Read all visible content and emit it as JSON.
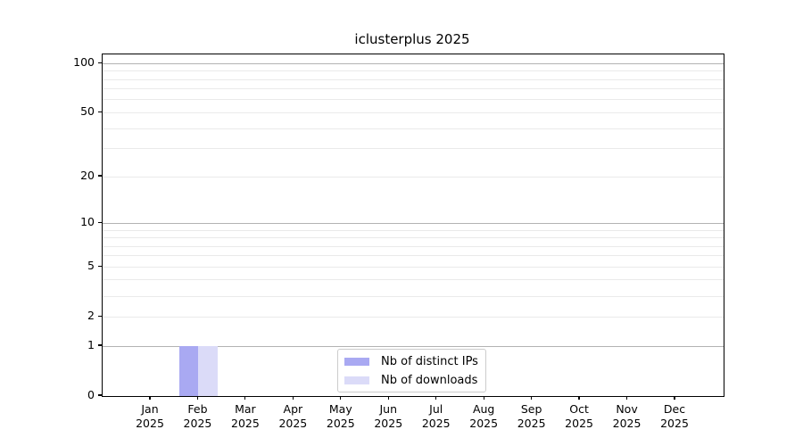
{
  "chart_data": {
    "type": "bar",
    "title": "iclusterplus 2025",
    "x_months": [
      "Jan",
      "Feb",
      "Mar",
      "Apr",
      "May",
      "Jun",
      "Jul",
      "Aug",
      "Sep",
      "Oct",
      "Nov",
      "Dec"
    ],
    "x_year": "2025",
    "series": [
      {
        "name": "Nb of distinct IPs",
        "color": "#a9a9f2",
        "values": [
          0,
          1,
          0,
          0,
          0,
          0,
          0,
          0,
          0,
          0,
          0,
          0
        ]
      },
      {
        "name": "Nb of downloads",
        "color": "#dbdbf8",
        "values": [
          0,
          1,
          0,
          0,
          0,
          0,
          0,
          0,
          0,
          0,
          0,
          0
        ]
      }
    ],
    "yscale": "log1p",
    "ylim": [
      0,
      113.6
    ],
    "y_tick_values": [
      0,
      1,
      2,
      5,
      10,
      20,
      50,
      100
    ],
    "y_major_gridlines": [
      1,
      10,
      100
    ],
    "y_minor_gridlines": [
      2,
      3,
      4,
      5,
      6,
      7,
      8,
      9,
      20,
      30,
      40,
      50,
      60,
      70,
      80,
      90
    ],
    "grid": true,
    "legend_position": "bottom-center"
  },
  "colors": {
    "background": "#ffffff",
    "axis": "#000000",
    "text": "#000000",
    "grid_major": "#b3b3b3",
    "grid_minor": "#eaeaea",
    "legend_border": "#cccccc"
  }
}
